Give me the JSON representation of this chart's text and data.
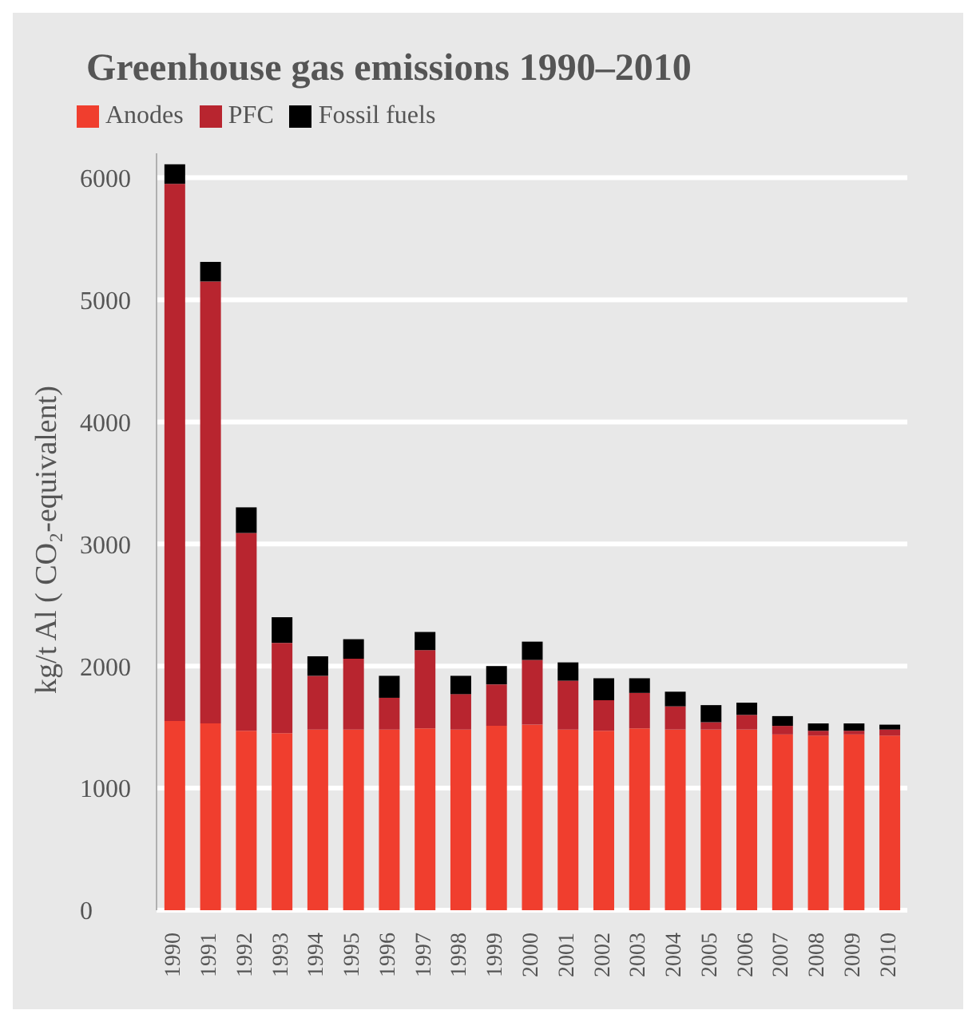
{
  "chart_data": {
    "type": "bar",
    "title": "Greenhouse gas emissions 1990–2010",
    "ylabel": "kg/t Al ( CO₂-equivalent)",
    "categories": [
      "1990",
      "1991",
      "1992",
      "1993",
      "1994",
      "1995",
      "1996",
      "1997",
      "1998",
      "1999",
      "2000",
      "2001",
      "2002",
      "2003",
      "2004",
      "2005",
      "2006",
      "2007",
      "2008",
      "2009",
      "2010"
    ],
    "series": [
      {
        "name": "Anodes",
        "color": "#f03e2e",
        "values": [
          1550,
          1530,
          1470,
          1450,
          1480,
          1480,
          1480,
          1490,
          1480,
          1510,
          1520,
          1480,
          1470,
          1490,
          1480,
          1480,
          1480,
          1440,
          1430,
          1440,
          1430
        ]
      },
      {
        "name": "PFC",
        "color": "#b8252f",
        "values": [
          4400,
          3620,
          1620,
          740,
          440,
          580,
          260,
          640,
          290,
          340,
          530,
          400,
          250,
          290,
          190,
          60,
          120,
          70,
          40,
          30,
          50
        ]
      },
      {
        "name": "Fossil fuels",
        "color": "#000000",
        "values": [
          160,
          160,
          210,
          210,
          160,
          160,
          180,
          150,
          150,
          150,
          150,
          150,
          180,
          120,
          120,
          140,
          100,
          80,
          60,
          60,
          40
        ]
      }
    ],
    "stacked": true,
    "ylim": [
      0,
      6200
    ],
    "yticks": [
      0,
      1000,
      2000,
      3000,
      4000,
      5000,
      6000
    ],
    "grid": "y",
    "legend": "top left"
  }
}
